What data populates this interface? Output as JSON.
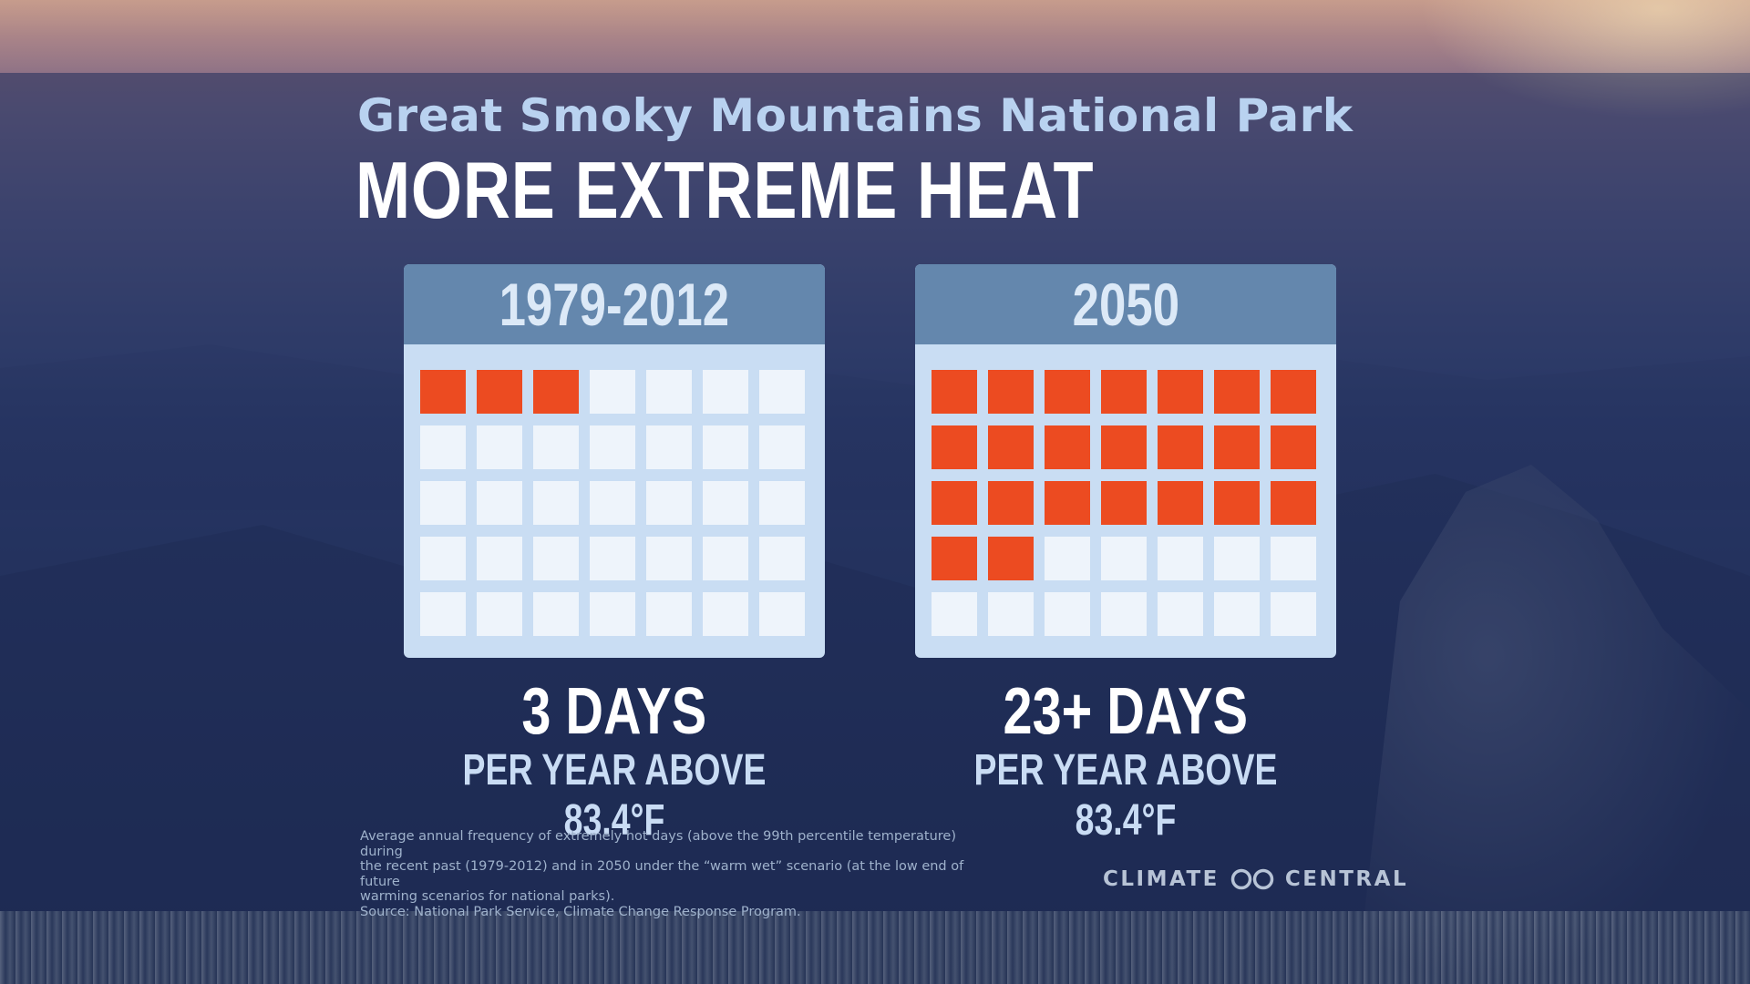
{
  "header": {
    "subtitle": "Great Smoky Mountains National Park",
    "title": "MORE EXTREME HEAT"
  },
  "panels": [
    {
      "period": "1979-2012",
      "hot_days": 3,
      "days_label": "3 DAYS",
      "per_year_label": "PER YEAR ABOVE 83.4°F"
    },
    {
      "period": "2050",
      "hot_days": 23,
      "days_label": "23+ DAYS",
      "per_year_label": "PER YEAR ABOVE 83.4°F"
    }
  ],
  "calendar": {
    "columns": 7,
    "rows": 5
  },
  "colors": {
    "hot_day": "#ec4b21",
    "normal_day": "#eef4fb",
    "calendar_header": "#6487ad",
    "calendar_body": "#c9ddf3"
  },
  "footnote": {
    "line1": "Average annual frequency of extremely hot days (above the 99th percentile temperature) during",
    "line2": "the recent past (1979-2012) and in 2050 under the “warm wet” scenario (at the low end of future",
    "line3": "warming scenarios for national parks).",
    "source": "Source: National Park Service, Climate Change Response Program."
  },
  "logo": {
    "left_text": "CLIMATE",
    "right_text": "CENTRAL",
    "icon": "climate-central-infinity-icon"
  }
}
